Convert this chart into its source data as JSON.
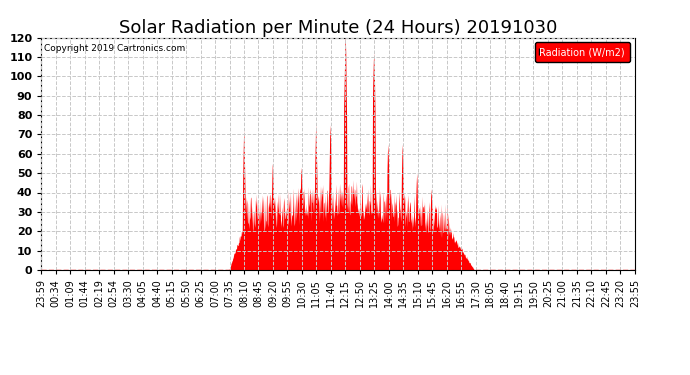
{
  "title": "Solar Radiation per Minute (24 Hours) 20191030",
  "copyright_text": "Copyright 2019 Cartronics.com",
  "legend_label": "Radiation (W/m2)",
  "ylim": [
    0.0,
    120.0
  ],
  "yticks": [
    0.0,
    10.0,
    20.0,
    30.0,
    40.0,
    50.0,
    60.0,
    70.0,
    80.0,
    90.0,
    100.0,
    110.0,
    120.0
  ],
  "fill_color": "#FF0000",
  "bg_color": "#FFFFFF",
  "grid_color": "#C8C8C8",
  "title_fontsize": 13,
  "tick_fontsize": 7,
  "x_tick_labels": [
    "23:59",
    "00:34",
    "01:09",
    "01:44",
    "02:19",
    "02:54",
    "03:30",
    "04:05",
    "04:40",
    "05:15",
    "05:50",
    "06:25",
    "07:00",
    "07:35",
    "08:10",
    "08:45",
    "09:20",
    "09:55",
    "10:30",
    "11:05",
    "11:40",
    "12:15",
    "12:50",
    "13:25",
    "14:00",
    "14:35",
    "15:10",
    "15:45",
    "16:20",
    "16:55",
    "17:30",
    "18:05",
    "18:40",
    "19:15",
    "19:50",
    "20:25",
    "21:00",
    "21:35",
    "22:10",
    "22:45",
    "23:20",
    "23:55"
  ],
  "sunrise": 455,
  "sunset": 1050,
  "seed": 77
}
